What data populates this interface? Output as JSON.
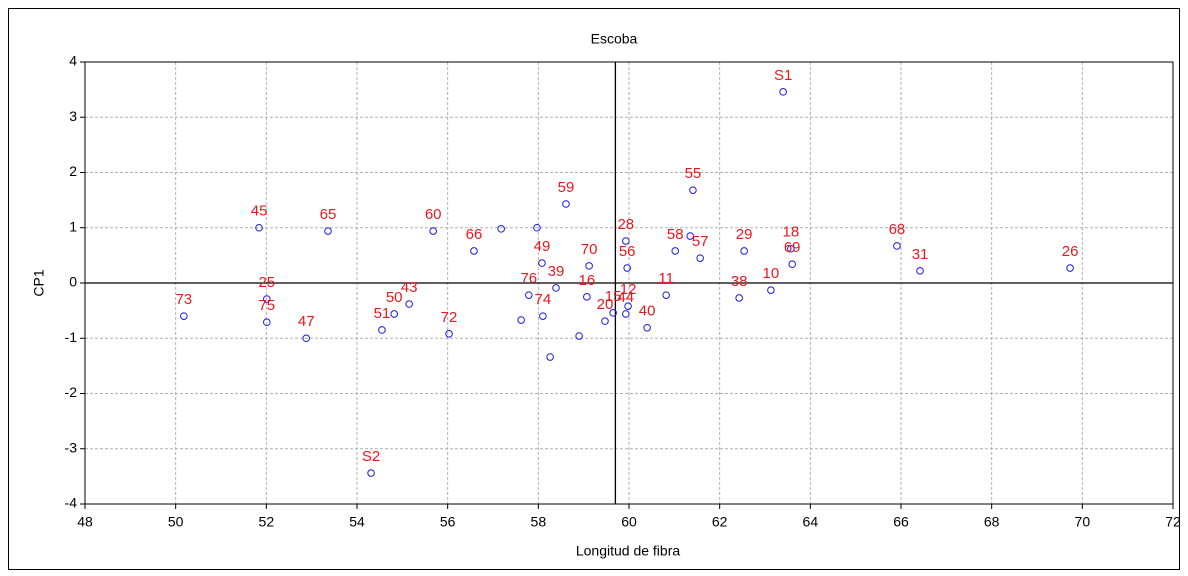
{
  "chart_data": {
    "type": "scatter",
    "title": "Escoba",
    "x_label": "Longitud de fibra",
    "y_label": "CP1",
    "xlim": [
      48,
      72
    ],
    "ylim": [
      -4,
      4
    ],
    "xticks": [
      48,
      50,
      52,
      54,
      56,
      58,
      60,
      62,
      64,
      66,
      68,
      70,
      72
    ],
    "yticks": [
      -4,
      -3,
      -2,
      -1,
      0,
      1,
      2,
      3,
      4
    ],
    "grid": true,
    "vline": 59.7,
    "hline": 0,
    "series": [
      {
        "color": "#1a1ae6",
        "label_color": "#e8191e",
        "x": [
          63.4,
          54.31,
          50.18,
          51.84,
          53.36,
          52.01,
          52.01,
          52.88,
          54.55,
          54.82,
          55.15,
          55.68,
          56.03,
          56.58,
          57.18,
          58.61,
          57.97,
          58.08,
          59.12,
          57.79,
          58.39,
          58.1,
          57.62,
          58.26,
          58.9,
          59.07,
          59.93,
          59.96,
          59.47,
          59.65,
          59.93,
          59.98,
          60.4,
          60.82,
          61.02,
          61.35,
          61.57,
          61.41,
          62.54,
          62.43,
          63.13,
          63.57,
          63.6,
          65.91,
          66.42,
          69.73
        ],
        "values": [
          3.46,
          -3.44,
          -0.6,
          1.0,
          0.94,
          -0.29,
          -0.71,
          -1.0,
          -0.85,
          -0.56,
          -0.38,
          0.94,
          -0.92,
          0.58,
          0.98,
          1.43,
          1.0,
          0.36,
          0.31,
          -0.22,
          -0.09,
          -0.6,
          -0.67,
          -1.34,
          -0.96,
          -0.25,
          0.76,
          0.27,
          -0.69,
          -0.54,
          -0.56,
          -0.42,
          -0.81,
          -0.22,
          0.58,
          0.85,
          0.45,
          1.68,
          0.58,
          -0.27,
          -0.13,
          0.62,
          0.34,
          0.67,
          0.22,
          0.27
        ],
        "labels": [
          "S1",
          "S2",
          "73",
          "45",
          "65",
          "25",
          "75",
          "47",
          "51",
          "50",
          "43",
          "60",
          "72",
          "66",
          null,
          "59",
          null,
          "49",
          "70",
          "76",
          "39",
          "74",
          null,
          null,
          null,
          "16",
          "28",
          "56",
          "20",
          "15",
          "44",
          "12",
          "40",
          "11",
          "58",
          null,
          "57",
          "55",
          "29",
          "38",
          "10",
          "18",
          "69",
          "68",
          "31",
          "26"
        ]
      }
    ]
  }
}
